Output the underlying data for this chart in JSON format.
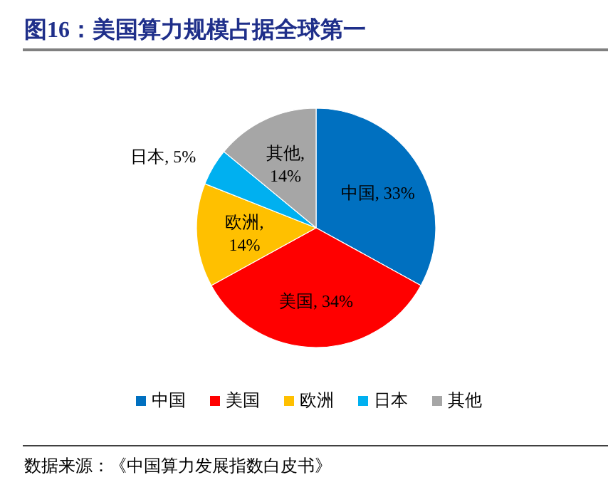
{
  "chart_data": {
    "type": "pie",
    "title": "图16：美国算力规模占据全球第一",
    "categories": [
      "中国",
      "美国",
      "欧洲",
      "日本",
      "其他"
    ],
    "values": [
      33,
      34,
      14,
      5,
      14
    ],
    "colors": [
      "#0070c0",
      "#ff0000",
      "#ffc000",
      "#00b0f0",
      "#a6a6a6"
    ],
    "value_labels": [
      "中国, 33%",
      "美国, 34%",
      "欧洲, 14%",
      "日本, 5%",
      "其他, 14%"
    ],
    "legend": "bottom",
    "annotations": [
      "数据来源：《中国算力发展指数白皮书》"
    ]
  }
}
